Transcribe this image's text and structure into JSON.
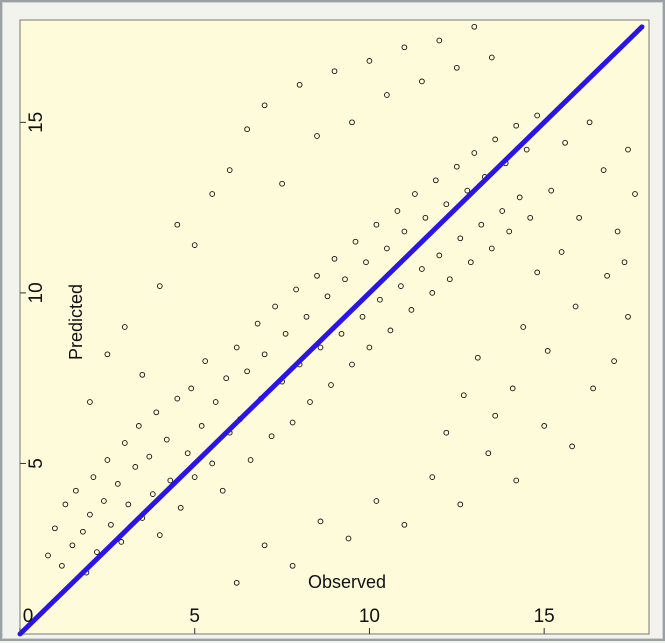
{
  "chart_data": {
    "type": "scatter",
    "xlabel": "Observed",
    "ylabel": "Predicted",
    "xlim": [
      0,
      18
    ],
    "ylim": [
      0,
      18
    ],
    "x_ticks": [
      0,
      5,
      10,
      15
    ],
    "y_ticks": [
      0,
      5,
      10,
      15
    ],
    "x_tick_labels": [
      "0",
      "5",
      "10",
      "15"
    ],
    "y_tick_labels": [
      "0",
      "5",
      "10",
      "15"
    ],
    "grid": false,
    "background_color": "#fdfbd9",
    "point_color": "#111111",
    "reference_line": {
      "color": "#2a14e8",
      "x": [
        0,
        17.8
      ],
      "y": [
        0,
        17.8
      ]
    },
    "series": [
      {
        "points": [
          [
            0.8,
            2.3
          ],
          [
            1.0,
            3.1
          ],
          [
            1.2,
            2.0
          ],
          [
            1.3,
            3.8
          ],
          [
            1.5,
            2.6
          ],
          [
            1.6,
            4.2
          ],
          [
            1.8,
            3.0
          ],
          [
            1.9,
            1.8
          ],
          [
            2.0,
            3.5
          ],
          [
            2.1,
            4.6
          ],
          [
            2.2,
            2.4
          ],
          [
            2.4,
            3.9
          ],
          [
            2.5,
            5.1
          ],
          [
            2.6,
            3.2
          ],
          [
            2.8,
            4.4
          ],
          [
            2.9,
            2.7
          ],
          [
            3.0,
            5.6
          ],
          [
            3.1,
            3.8
          ],
          [
            3.3,
            4.9
          ],
          [
            3.4,
            6.1
          ],
          [
            3.5,
            3.4
          ],
          [
            3.7,
            5.2
          ],
          [
            3.8,
            4.1
          ],
          [
            3.9,
            6.5
          ],
          [
            4.0,
            2.9
          ],
          [
            4.2,
            5.7
          ],
          [
            4.3,
            4.5
          ],
          [
            4.5,
            6.9
          ],
          [
            4.6,
            3.7
          ],
          [
            4.8,
            5.3
          ],
          [
            4.9,
            7.2
          ],
          [
            5.0,
            4.6
          ],
          [
            5.2,
            6.1
          ],
          [
            5.3,
            8.0
          ],
          [
            5.5,
            5.0
          ],
          [
            5.6,
            6.8
          ],
          [
            5.8,
            4.2
          ],
          [
            5.9,
            7.5
          ],
          [
            6.0,
            5.9
          ],
          [
            6.2,
            8.4
          ],
          [
            6.3,
            6.3
          ],
          [
            6.5,
            7.7
          ],
          [
            6.6,
            5.1
          ],
          [
            6.8,
            9.1
          ],
          [
            6.9,
            6.9
          ],
          [
            7.0,
            8.2
          ],
          [
            7.2,
            5.8
          ],
          [
            7.3,
            9.6
          ],
          [
            7.5,
            7.4
          ],
          [
            7.6,
            8.8
          ],
          [
            7.8,
            6.2
          ],
          [
            7.9,
            10.1
          ],
          [
            8.0,
            7.9
          ],
          [
            8.2,
            9.3
          ],
          [
            8.3,
            6.8
          ],
          [
            8.5,
            10.5
          ],
          [
            8.6,
            8.4
          ],
          [
            8.8,
            9.9
          ],
          [
            8.9,
            7.3
          ],
          [
            9.0,
            11.0
          ],
          [
            9.2,
            8.8
          ],
          [
            9.3,
            10.4
          ],
          [
            9.5,
            7.9
          ],
          [
            9.6,
            11.5
          ],
          [
            9.8,
            9.3
          ],
          [
            9.9,
            10.9
          ],
          [
            10.0,
            8.4
          ],
          [
            10.2,
            12.0
          ],
          [
            10.3,
            9.8
          ],
          [
            10.5,
            11.3
          ],
          [
            10.6,
            8.9
          ],
          [
            10.8,
            12.4
          ],
          [
            10.9,
            10.2
          ],
          [
            11.0,
            11.8
          ],
          [
            11.2,
            9.5
          ],
          [
            11.3,
            12.9
          ],
          [
            11.5,
            10.7
          ],
          [
            11.6,
            12.2
          ],
          [
            11.8,
            10.0
          ],
          [
            11.9,
            13.3
          ],
          [
            12.0,
            11.1
          ],
          [
            12.2,
            12.6
          ],
          [
            12.3,
            10.4
          ],
          [
            12.5,
            13.7
          ],
          [
            12.6,
            11.6
          ],
          [
            12.8,
            13.0
          ],
          [
            12.9,
            10.9
          ],
          [
            13.0,
            14.1
          ],
          [
            13.2,
            12.0
          ],
          [
            13.3,
            13.4
          ],
          [
            13.5,
            11.3
          ],
          [
            13.6,
            14.5
          ],
          [
            13.8,
            12.4
          ],
          [
            13.9,
            13.8
          ],
          [
            14.0,
            11.8
          ],
          [
            14.2,
            14.9
          ],
          [
            14.3,
            12.8
          ],
          [
            14.5,
            14.2
          ],
          [
            14.6,
            12.2
          ],
          [
            14.8,
            15.2
          ],
          [
            2.0,
            6.8
          ],
          [
            2.5,
            8.2
          ],
          [
            3.0,
            9.0
          ],
          [
            3.5,
            7.6
          ],
          [
            4.0,
            10.2
          ],
          [
            4.5,
            12.0
          ],
          [
            5.0,
            11.4
          ],
          [
            5.5,
            12.9
          ],
          [
            6.0,
            13.6
          ],
          [
            6.5,
            14.8
          ],
          [
            7.0,
            15.5
          ],
          [
            7.5,
            13.2
          ],
          [
            8.0,
            16.1
          ],
          [
            8.5,
            14.6
          ],
          [
            9.0,
            16.5
          ],
          [
            9.5,
            15.0
          ],
          [
            10.0,
            16.8
          ],
          [
            10.5,
            15.8
          ],
          [
            11.0,
            17.2
          ],
          [
            11.5,
            16.2
          ],
          [
            12.0,
            17.4
          ],
          [
            12.5,
            16.6
          ],
          [
            13.0,
            17.8
          ],
          [
            13.5,
            16.9
          ],
          [
            6.2,
            1.5
          ],
          [
            7.0,
            2.6
          ],
          [
            7.8,
            2.0
          ],
          [
            8.6,
            3.3
          ],
          [
            9.4,
            2.8
          ],
          [
            10.2,
            3.9
          ],
          [
            11.0,
            3.2
          ],
          [
            11.8,
            4.6
          ],
          [
            12.6,
            3.8
          ],
          [
            13.4,
            5.3
          ],
          [
            14.2,
            4.5
          ],
          [
            15.0,
            6.1
          ],
          [
            15.8,
            5.5
          ],
          [
            16.4,
            7.2
          ],
          [
            17.0,
            8.0
          ],
          [
            17.4,
            9.3
          ],
          [
            15.2,
            13.0
          ],
          [
            15.6,
            14.4
          ],
          [
            16.0,
            12.2
          ],
          [
            16.3,
            15.0
          ],
          [
            16.7,
            13.6
          ],
          [
            17.1,
            11.8
          ],
          [
            17.4,
            14.2
          ],
          [
            17.6,
            12.9
          ],
          [
            16.8,
            10.5
          ],
          [
            17.3,
            10.9
          ],
          [
            14.4,
            9.0
          ],
          [
            14.8,
            10.6
          ],
          [
            15.1,
            8.3
          ],
          [
            15.5,
            11.2
          ],
          [
            15.9,
            9.6
          ],
          [
            14.1,
            7.2
          ],
          [
            13.6,
            6.4
          ],
          [
            13.1,
            8.1
          ],
          [
            12.7,
            7.0
          ],
          [
            12.2,
            5.9
          ]
        ]
      }
    ]
  }
}
